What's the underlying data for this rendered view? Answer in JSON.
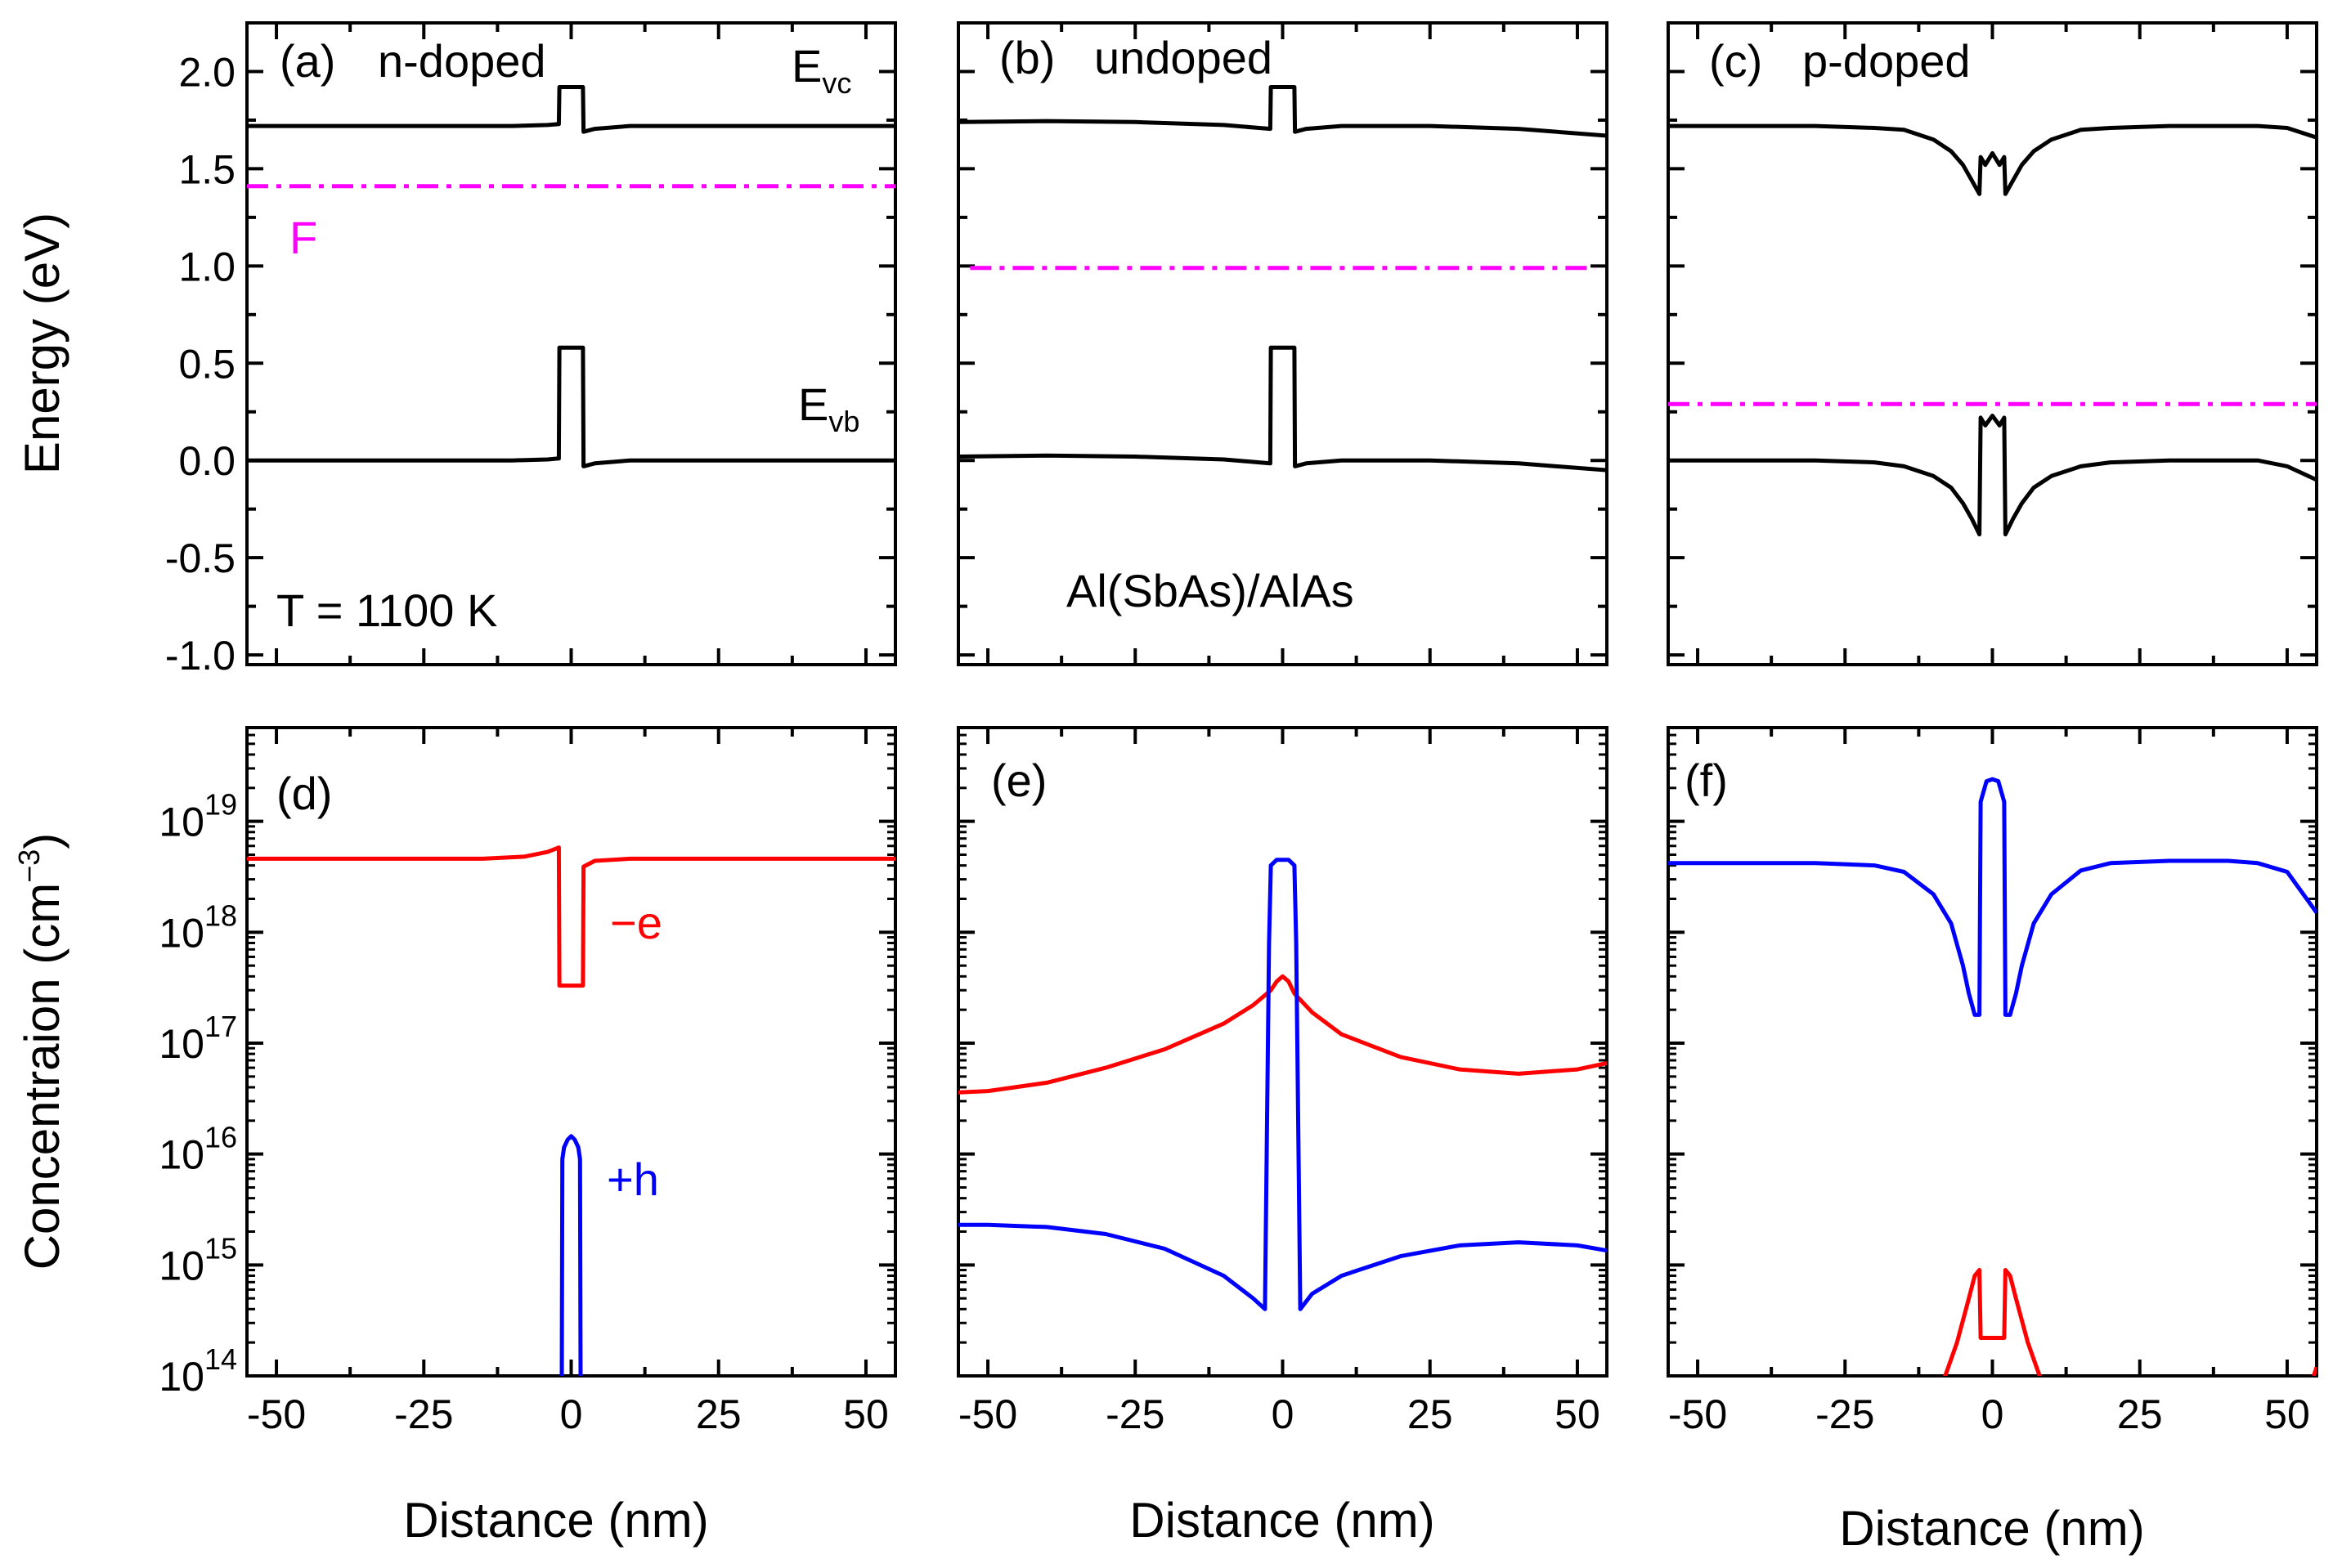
{
  "figure": {
    "xlabel": "Distance (nm)",
    "energy_ylabel": "Energy (eV)",
    "conc_ylabel": "Concentraion (cm",
    "conc_ylabel_exp": "−3",
    "conc_ylabel_close": ")",
    "colors": {
      "band": "#000000",
      "fermi": "#ff00ff",
      "electron": "#ff0000",
      "hole": "#0000ff"
    }
  },
  "chart_data": [
    {
      "panel": "(a)",
      "type": "line",
      "title": "n-doped",
      "xlim": [
        -55,
        55
      ],
      "ylim": [
        -1.05,
        2.25
      ],
      "xticks": [
        -50,
        -25,
        0,
        25,
        50
      ],
      "yticks": [
        "2.0",
        "1.5",
        "1.0",
        "0.5",
        "0.0",
        "-0.5",
        "-1.0"
      ],
      "annotations": {
        "evc": "E",
        "evc_sub": "vc",
        "evb": "E",
        "evb_sub": "vb",
        "fermi": "F",
        "temp": "T = 1100 K"
      },
      "series": [
        {
          "name": "Evc",
          "color": "#000000",
          "x": [
            -55,
            -10,
            -4,
            -2.1,
            -2,
            2,
            2.1,
            4,
            10,
            55
          ],
          "y": [
            1.72,
            1.72,
            1.725,
            1.73,
            1.92,
            1.92,
            1.69,
            1.705,
            1.72,
            1.72
          ]
        },
        {
          "name": "F",
          "color": "#ff00ff",
          "dash": true,
          "x": [
            -55,
            55
          ],
          "y": [
            1.41,
            1.41
          ]
        },
        {
          "name": "Evb",
          "color": "#000000",
          "x": [
            -55,
            -10,
            -4,
            -2.1,
            -2,
            2,
            2.1,
            4,
            10,
            55
          ],
          "y": [
            0.0,
            0.0,
            0.005,
            0.01,
            0.58,
            0.58,
            -0.03,
            -0.015,
            0.0,
            0.0
          ]
        }
      ]
    },
    {
      "panel": "(b)",
      "type": "line",
      "title": "undoped",
      "xlim": [
        -55,
        55
      ],
      "ylim": [
        -1.05,
        2.25
      ],
      "xticks": [
        -50,
        -25,
        0,
        25,
        50
      ],
      "annotations": {
        "material": "Al(SbAs)/AlAs"
      },
      "series": [
        {
          "name": "Evc",
          "color": "#000000",
          "x": [
            -55,
            -40,
            -25,
            -10,
            -4,
            -2.1,
            -2,
            2,
            2.1,
            4,
            10,
            25,
            40,
            55
          ],
          "y": [
            1.74,
            1.745,
            1.74,
            1.725,
            1.71,
            1.705,
            1.92,
            1.92,
            1.69,
            1.705,
            1.72,
            1.72,
            1.705,
            1.67
          ]
        },
        {
          "name": "F",
          "color": "#ff00ff",
          "dash": true,
          "x": [
            -53,
            53
          ],
          "y": [
            0.99,
            0.99
          ]
        },
        {
          "name": "Evb",
          "color": "#000000",
          "x": [
            -55,
            -40,
            -25,
            -10,
            -4,
            -2.1,
            -2,
            2,
            2.1,
            4,
            10,
            25,
            40,
            55
          ],
          "y": [
            0.02,
            0.025,
            0.02,
            0.005,
            -0.01,
            -0.015,
            0.58,
            0.58,
            -0.03,
            -0.015,
            0.0,
            0.0,
            -0.015,
            -0.05
          ]
        }
      ]
    },
    {
      "panel": "(c)",
      "type": "line",
      "title": "p-doped",
      "xlim": [
        -55,
        55
      ],
      "ylim": [
        -1.05,
        2.25
      ],
      "xticks": [
        -50,
        -25,
        0,
        25,
        50
      ],
      "series": [
        {
          "name": "Evc",
          "color": "#000000",
          "x": [
            -55,
            -30,
            -20,
            -15,
            -10,
            -7,
            -5,
            -3.5,
            -2.2,
            -2,
            -1.2,
            0,
            1.2,
            2,
            2.2,
            3.5,
            5,
            7,
            10,
            15,
            20,
            30,
            45,
            50,
            55
          ],
          "y": [
            1.72,
            1.72,
            1.71,
            1.7,
            1.65,
            1.59,
            1.52,
            1.44,
            1.37,
            1.56,
            1.52,
            1.58,
            1.52,
            1.56,
            1.37,
            1.44,
            1.52,
            1.59,
            1.65,
            1.7,
            1.71,
            1.72,
            1.72,
            1.71,
            1.66
          ]
        },
        {
          "name": "F",
          "color": "#ff00ff",
          "dash": true,
          "x": [
            -55,
            55
          ],
          "y": [
            0.29,
            0.29
          ]
        },
        {
          "name": "Evb",
          "color": "#000000",
          "x": [
            -55,
            -30,
            -20,
            -15,
            -10,
            -7,
            -5,
            -3.5,
            -2.2,
            -2,
            -1.2,
            0,
            1.2,
            2,
            2.2,
            3.5,
            5,
            7,
            10,
            15,
            20,
            30,
            45,
            50,
            55
          ],
          "y": [
            0.0,
            0.0,
            -0.01,
            -0.03,
            -0.08,
            -0.14,
            -0.22,
            -0.3,
            -0.38,
            0.22,
            0.18,
            0.23,
            0.18,
            0.22,
            -0.38,
            -0.3,
            -0.22,
            -0.14,
            -0.08,
            -0.03,
            -0.01,
            0.0,
            0.0,
            -0.03,
            -0.1
          ]
        }
      ]
    },
    {
      "panel": "(d)",
      "type": "line",
      "yscale": "log",
      "xlim": [
        -55,
        55
      ],
      "ylim": [
        100000000000000.0,
        7e+19
      ],
      "xticks": [
        -50,
        -25,
        0,
        25,
        50
      ],
      "yticks": [
        100000000000000.0,
        1000000000000000.0,
        1e+16,
        1e+17,
        1e+18,
        1e+19
      ],
      "annotations": {
        "electron": "−e",
        "hole": "+h"
      },
      "series": [
        {
          "name": "-e",
          "color": "#ff0000",
          "x": [
            -55,
            -15,
            -8,
            -4,
            -2.1,
            -2,
            2,
            2.1,
            4,
            10,
            55
          ],
          "y": [
            4.6e+18,
            4.6e+18,
            4.8e+18,
            5.3e+18,
            5.8e+18,
            3.3e+17,
            3.3e+17,
            3.9e+18,
            4.4e+18,
            4.6e+18,
            4.6e+18
          ]
        },
        {
          "name": "+h",
          "color": "#0000ff",
          "x": [
            -1.6,
            -1.5,
            -1.2,
            -0.6,
            0,
            0.6,
            1.2,
            1.5,
            1.6
          ],
          "y": [
            90000000000000.0,
            9000000000000000.0,
            1.15e+16,
            1.35e+16,
            1.45e+16,
            1.35e+16,
            1.15e+16,
            9000000000000000.0,
            90000000000000.0
          ]
        }
      ]
    },
    {
      "panel": "(e)",
      "type": "line",
      "yscale": "log",
      "xlim": [
        -55,
        55
      ],
      "ylim": [
        100000000000000.0,
        7e+19
      ],
      "xticks": [
        -50,
        -25,
        0,
        25,
        50
      ],
      "series": [
        {
          "name": "-e",
          "color": "#ff0000",
          "x": [
            -55,
            -50,
            -40,
            -30,
            -20,
            -10,
            -5,
            -2,
            -1,
            0,
            1,
            2,
            5,
            10,
            20,
            30,
            40,
            50,
            55
          ],
          "y": [
            3.6e+16,
            3.7e+16,
            4.4e+16,
            6e+16,
            8.8e+16,
            1.5e+17,
            2.2e+17,
            3e+17,
            3.6e+17,
            4e+17,
            3.6e+17,
            2.8e+17,
            1.9e+17,
            1.2e+17,
            7.5e+16,
            5.8e+16,
            5.3e+16,
            5.8e+16,
            6.6e+16
          ]
        },
        {
          "name": "+h",
          "color": "#0000ff",
          "x": [
            -55,
            -50,
            -40,
            -30,
            -20,
            -10,
            -5,
            -3,
            -2.3,
            -2,
            -1,
            0,
            1,
            2,
            2.3,
            3,
            5,
            10,
            20,
            30,
            40,
            50,
            55
          ],
          "y": [
            2300000000000000.0,
            2300000000000000.0,
            2200000000000000.0,
            1900000000000000.0,
            1400000000000000.0,
            800000000000000.0,
            500000000000000.0,
            400000000000000.0,
            8e+17,
            4e+18,
            4.5e+18,
            4.5e+18,
            4.5e+18,
            4e+18,
            8e+17,
            400000000000000.0,
            550000000000000.0,
            800000000000000.0,
            1200000000000000.0,
            1500000000000000.0,
            1600000000000000.0,
            1500000000000000.0,
            1350000000000000.0
          ]
        }
      ]
    },
    {
      "panel": "(f)",
      "type": "line",
      "yscale": "log",
      "xlim": [
        -55,
        55
      ],
      "ylim": [
        100000000000000.0,
        7e+19
      ],
      "xticks": [
        -50,
        -25,
        0,
        25,
        50
      ],
      "series": [
        {
          "name": "+h",
          "color": "#0000ff",
          "x": [
            -55,
            -30,
            -20,
            -15,
            -10,
            -7,
            -5,
            -4,
            -3,
            -2.2,
            -2,
            -1,
            0,
            1,
            2,
            2.2,
            3,
            4,
            5,
            7,
            10,
            15,
            20,
            30,
            40,
            45,
            50,
            55
          ],
          "y": [
            4.2e+18,
            4.2e+18,
            4e+18,
            3.5e+18,
            2.2e+18,
            1.2e+18,
            5e+17,
            2.8e+17,
            1.8e+17,
            1.8e+17,
            1.5e+19,
            2.3e+19,
            2.4e+19,
            2.3e+19,
            1.5e+19,
            1.8e+17,
            1.8e+17,
            2.8e+17,
            5e+17,
            1.2e+18,
            2.2e+18,
            3.6e+18,
            4.2e+18,
            4.4e+18,
            4.4e+18,
            4.2e+18,
            3.5e+18,
            1.5e+18
          ]
        },
        {
          "name": "-e",
          "color": "#ff0000",
          "x": [
            -9,
            -8,
            -6,
            -4,
            -3,
            -2.2,
            -2,
            0,
            2,
            2.2,
            3,
            4,
            6,
            8,
            9
          ],
          "y": [
            80000000000000.0,
            100000000000000.0,
            200000000000000.0,
            500000000000000.0,
            800000000000000.0,
            900000000000000.0,
            220000000000000.0,
            220000000000000.0,
            220000000000000.0,
            900000000000000.0,
            800000000000000.0,
            500000000000000.0,
            200000000000000.0,
            100000000000000.0,
            80000000000000.0
          ]
        },
        {
          "name": "-e edge",
          "color": "#ff0000",
          "x": [
            54.5,
            55
          ],
          "y": [
            100000000000000.0,
            120000000000000.0
          ]
        }
      ]
    }
  ]
}
